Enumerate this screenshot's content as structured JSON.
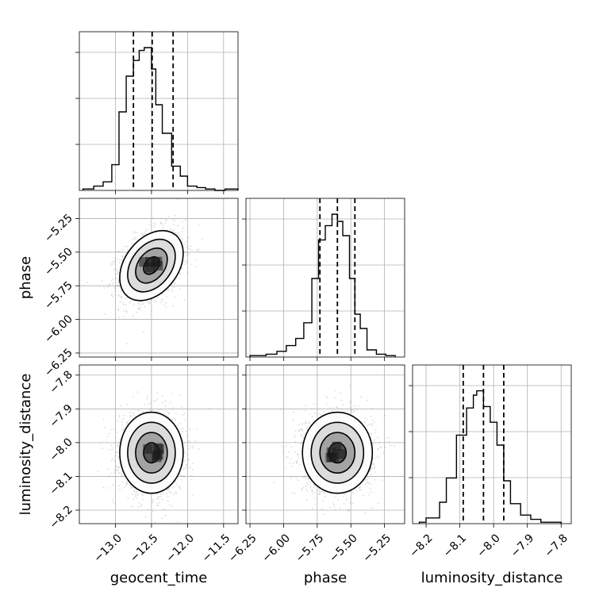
{
  "chart_data": {
    "type": "corner",
    "parameters": [
      {
        "name": "geocent_time",
        "range": [
          -13.5,
          -11.3
        ],
        "ticks": [
          -13.0,
          -12.5,
          -12.0,
          -11.5
        ],
        "tick_labels": [
          "−13.0",
          "−12.5",
          "−12.0",
          "−11.5"
        ],
        "quantiles": [
          -12.75,
          -12.49,
          -12.2
        ],
        "mean": -12.5,
        "sd": 0.22,
        "hist_bins": [
          -13.45,
          -13.3,
          -13.17,
          -13.05,
          -12.95,
          -12.85,
          -12.75,
          -12.67,
          -12.6,
          -12.5,
          -12.44,
          -12.35,
          -12.22,
          -12.1,
          -12.0,
          -11.87,
          -11.75,
          -11.62,
          -11.48,
          -11.3
        ],
        "hist_counts": [
          0.01,
          0.03,
          0.06,
          0.18,
          0.55,
          0.8,
          0.91,
          0.98,
          1.0,
          0.85,
          0.6,
          0.4,
          0.17,
          0.1,
          0.03,
          0.02,
          0.01,
          0.0,
          0.01
        ]
      },
      {
        "name": "phase",
        "range": [
          -6.28,
          -5.1
        ],
        "ticks": [
          -6.25,
          -6.0,
          -5.75,
          -5.5,
          -5.25
        ],
        "tick_labels": [
          "−6.25",
          "−6.00",
          "−5.75",
          "−5.50",
          "−5.25"
        ],
        "quantiles": [
          -5.73,
          -5.6,
          -5.47
        ],
        "mean": -5.6,
        "sd": 0.13,
        "hist_bins": [
          -6.25,
          -6.13,
          -6.05,
          -5.98,
          -5.91,
          -5.85,
          -5.79,
          -5.74,
          -5.69,
          -5.64,
          -5.6,
          -5.56,
          -5.51,
          -5.47,
          -5.43,
          -5.38,
          -5.31,
          -5.24,
          -5.17
        ],
        "hist_counts": [
          0.01,
          0.02,
          0.04,
          0.08,
          0.13,
          0.24,
          0.55,
          0.82,
          0.92,
          1.0,
          0.95,
          0.85,
          0.55,
          0.3,
          0.2,
          0.05,
          0.02,
          0.01
        ]
      },
      {
        "name": "luminosity_distance",
        "range": [
          -8.24,
          -7.77
        ],
        "ticks": [
          -8.2,
          -8.1,
          -8.0,
          -7.9,
          -7.8
        ],
        "tick_labels": [
          "−8.2",
          "−8.1",
          "−8.0",
          "−7.9",
          "−7.8"
        ],
        "quantiles": [
          -8.09,
          -8.03,
          -7.97
        ],
        "mean": -8.03,
        "sd": 0.06,
        "hist_bins": [
          -8.22,
          -8.2,
          -8.16,
          -8.14,
          -8.11,
          -8.08,
          -8.06,
          -8.05,
          -8.03,
          -8.01,
          -7.99,
          -7.97,
          -7.95,
          -7.92,
          -7.89,
          -7.86,
          -7.8
        ],
        "hist_counts": [
          0.01,
          0.04,
          0.15,
          0.32,
          0.62,
          0.81,
          0.9,
          0.93,
          0.82,
          0.71,
          0.55,
          0.3,
          0.14,
          0.06,
          0.03,
          0.01
        ]
      }
    ],
    "pairs": [
      {
        "x": "geocent_time",
        "y": "phase",
        "rho": 0.35
      },
      {
        "x": "geocent_time",
        "y": "luminosity_distance",
        "rho": 0.0
      },
      {
        "x": "phase",
        "y": "luminosity_distance",
        "rho": 0.0
      }
    ],
    "contour_sigma_levels": [
      0.5,
      1.0,
      1.5,
      2.0
    ],
    "grid": true
  }
}
